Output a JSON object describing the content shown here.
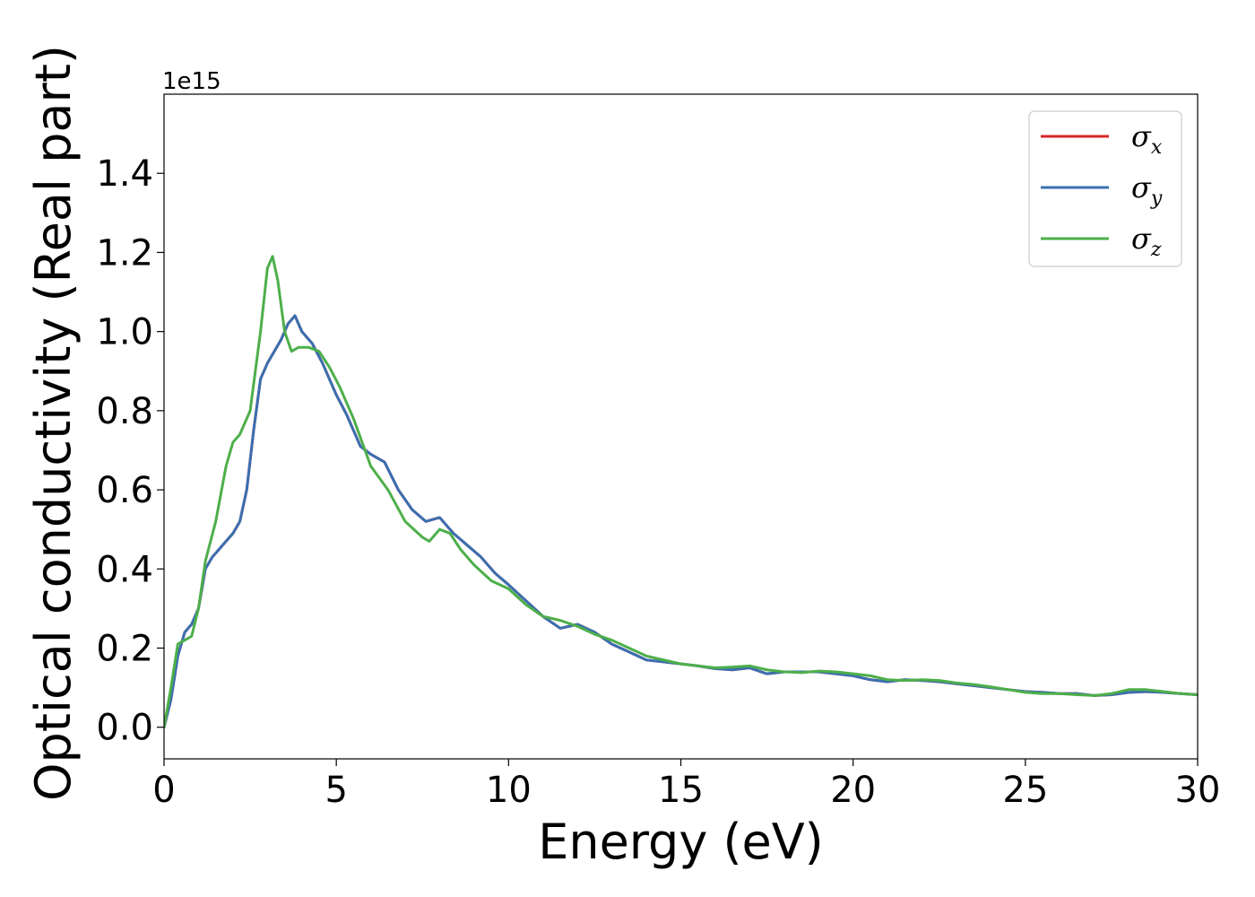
{
  "chart_data": {
    "type": "line",
    "title": "",
    "xlabel": "Energy (eV)",
    "ylabel": "Optical conductivity (Real part)",
    "y_offset_label": "1e15",
    "xlim": [
      0,
      30
    ],
    "ylim": [
      -0.08,
      1.6
    ],
    "xticks": [
      0,
      5,
      10,
      15,
      20,
      25,
      30
    ],
    "xtick_labels": [
      "0",
      "5",
      "10",
      "15",
      "20",
      "25",
      "30"
    ],
    "yticks": [
      0.0,
      0.2,
      0.4,
      0.6,
      0.8,
      1.0,
      1.2,
      1.4
    ],
    "ytick_labels": [
      "0.0",
      "0.2",
      "0.4",
      "0.6",
      "0.8",
      "1.0",
      "1.2",
      "1.4"
    ],
    "grid": false,
    "legend_position": "top-right",
    "series": [
      {
        "name": "σ",
        "subscript": "x",
        "color": "#d62728",
        "x": [
          0,
          0.2,
          0.4,
          0.6,
          0.8,
          1.0,
          1.2,
          1.4,
          1.6,
          1.8,
          2.0,
          2.2,
          2.4,
          2.6,
          2.8,
          3.0,
          3.2,
          3.4,
          3.6,
          3.8,
          4.0,
          4.3,
          4.6,
          5.0,
          5.3,
          5.7,
          6.0,
          6.4,
          6.8,
          7.2,
          7.6,
          8.0,
          8.4,
          8.8,
          9.2,
          9.6,
          10.0,
          10.5,
          11.0,
          11.5,
          12.0,
          12.5,
          13.0,
          13.5,
          14.0,
          14.5,
          15.0,
          15.5,
          16.0,
          16.5,
          17.0,
          17.5,
          18.0,
          18.5,
          19.0,
          19.5,
          20.0,
          20.5,
          21.0,
          21.5,
          22.0,
          22.5,
          23.0,
          23.5,
          24.0,
          24.5,
          25.0,
          25.5,
          26.0,
          26.5,
          27.0,
          27.5,
          28.0,
          28.5,
          29.0,
          29.5,
          30.0
        ],
        "y": [
          0.0,
          0.07,
          0.18,
          0.24,
          0.26,
          0.3,
          0.4,
          0.43,
          0.45,
          0.47,
          0.49,
          0.52,
          0.6,
          0.75,
          0.88,
          0.92,
          0.95,
          0.98,
          1.02,
          1.04,
          1.0,
          0.97,
          0.92,
          0.84,
          0.79,
          0.71,
          0.69,
          0.67,
          0.6,
          0.55,
          0.52,
          0.53,
          0.49,
          0.46,
          0.43,
          0.39,
          0.36,
          0.32,
          0.28,
          0.25,
          0.26,
          0.24,
          0.21,
          0.19,
          0.17,
          0.165,
          0.16,
          0.155,
          0.148,
          0.145,
          0.15,
          0.135,
          0.14,
          0.14,
          0.14,
          0.135,
          0.13,
          0.12,
          0.115,
          0.12,
          0.118,
          0.115,
          0.11,
          0.105,
          0.1,
          0.095,
          0.09,
          0.088,
          0.085,
          0.085,
          0.08,
          0.082,
          0.088,
          0.09,
          0.088,
          0.085,
          0.082
        ]
      },
      {
        "name": "σ",
        "subscript": "y",
        "color": "#3a6fb0",
        "x": [
          0,
          0.2,
          0.4,
          0.6,
          0.8,
          1.0,
          1.2,
          1.4,
          1.6,
          1.8,
          2.0,
          2.2,
          2.4,
          2.6,
          2.8,
          3.0,
          3.2,
          3.4,
          3.6,
          3.8,
          4.0,
          4.3,
          4.6,
          5.0,
          5.3,
          5.7,
          6.0,
          6.4,
          6.8,
          7.2,
          7.6,
          8.0,
          8.4,
          8.8,
          9.2,
          9.6,
          10.0,
          10.5,
          11.0,
          11.5,
          12.0,
          12.5,
          13.0,
          13.5,
          14.0,
          14.5,
          15.0,
          15.5,
          16.0,
          16.5,
          17.0,
          17.5,
          18.0,
          18.5,
          19.0,
          19.5,
          20.0,
          20.5,
          21.0,
          21.5,
          22.0,
          22.5,
          23.0,
          23.5,
          24.0,
          24.5,
          25.0,
          25.5,
          26.0,
          26.5,
          27.0,
          27.5,
          28.0,
          28.5,
          29.0,
          29.5,
          30.0
        ],
        "y": [
          0.0,
          0.07,
          0.18,
          0.24,
          0.26,
          0.3,
          0.4,
          0.43,
          0.45,
          0.47,
          0.49,
          0.52,
          0.6,
          0.75,
          0.88,
          0.92,
          0.95,
          0.98,
          1.02,
          1.04,
          1.0,
          0.97,
          0.92,
          0.84,
          0.79,
          0.71,
          0.69,
          0.67,
          0.6,
          0.55,
          0.52,
          0.53,
          0.49,
          0.46,
          0.43,
          0.39,
          0.36,
          0.32,
          0.28,
          0.25,
          0.26,
          0.24,
          0.21,
          0.19,
          0.17,
          0.165,
          0.16,
          0.155,
          0.148,
          0.145,
          0.15,
          0.135,
          0.14,
          0.14,
          0.14,
          0.135,
          0.13,
          0.12,
          0.115,
          0.12,
          0.118,
          0.115,
          0.11,
          0.105,
          0.1,
          0.095,
          0.09,
          0.088,
          0.085,
          0.085,
          0.08,
          0.082,
          0.088,
          0.09,
          0.088,
          0.085,
          0.082
        ]
      },
      {
        "name": "σ",
        "subscript": "z",
        "color": "#4daf4a",
        "x": [
          0,
          0.2,
          0.4,
          0.6,
          0.8,
          1.0,
          1.2,
          1.5,
          1.8,
          2.0,
          2.2,
          2.5,
          2.8,
          3.0,
          3.15,
          3.3,
          3.5,
          3.7,
          3.9,
          4.2,
          4.5,
          4.8,
          5.1,
          5.5,
          6.0,
          6.5,
          7.0,
          7.5,
          7.7,
          8.0,
          8.3,
          8.6,
          9.0,
          9.5,
          10.0,
          10.5,
          11.0,
          11.5,
          12.0,
          12.5,
          13.0,
          13.5,
          14.0,
          14.5,
          15.0,
          15.5,
          16.0,
          16.5,
          17.0,
          17.5,
          18.0,
          18.5,
          19.0,
          19.5,
          20.0,
          20.5,
          21.0,
          21.5,
          22.0,
          22.5,
          23.0,
          23.5,
          24.0,
          24.5,
          25.0,
          25.5,
          26.0,
          26.5,
          27.0,
          27.5,
          28.0,
          28.5,
          29.0,
          29.5,
          30.0
        ],
        "y": [
          0.0,
          0.1,
          0.21,
          0.22,
          0.23,
          0.3,
          0.42,
          0.52,
          0.66,
          0.72,
          0.74,
          0.8,
          1.0,
          1.16,
          1.19,
          1.13,
          1.0,
          0.95,
          0.96,
          0.96,
          0.95,
          0.91,
          0.86,
          0.78,
          0.66,
          0.6,
          0.52,
          0.48,
          0.47,
          0.5,
          0.49,
          0.45,
          0.41,
          0.37,
          0.35,
          0.31,
          0.28,
          0.27,
          0.255,
          0.235,
          0.22,
          0.2,
          0.18,
          0.17,
          0.16,
          0.155,
          0.15,
          0.152,
          0.155,
          0.145,
          0.14,
          0.138,
          0.142,
          0.14,
          0.135,
          0.13,
          0.12,
          0.118,
          0.12,
          0.118,
          0.112,
          0.108,
          0.102,
          0.095,
          0.088,
          0.085,
          0.085,
          0.082,
          0.08,
          0.085,
          0.095,
          0.095,
          0.09,
          0.085,
          0.082
        ]
      }
    ]
  }
}
